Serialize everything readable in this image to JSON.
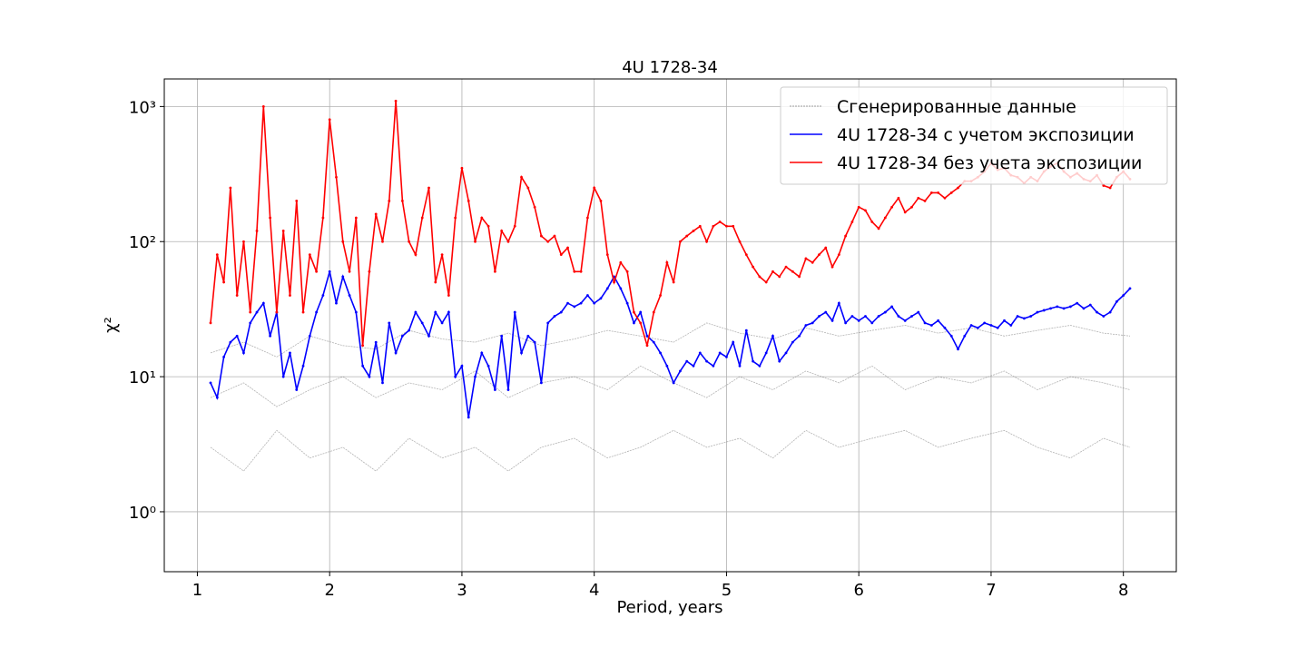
{
  "chart_data": {
    "type": "line",
    "title": "4U 1728-34",
    "xlabel": "Period, years",
    "ylabel": "χ²",
    "log_y": true,
    "grid": true,
    "legend": "upper right",
    "xlim": [
      0.75,
      8.4
    ],
    "xticks": [
      1,
      2,
      3,
      4,
      5,
      6,
      7,
      8
    ],
    "ylim": [
      0.36,
      1600
    ],
    "yticks": [
      {
        "value": 1,
        "label": "10⁰"
      },
      {
        "value": 10,
        "label": "10¹"
      },
      {
        "value": 100,
        "label": "10²"
      },
      {
        "value": 1000,
        "label": "10³"
      }
    ],
    "x": [
      1.1,
      1.15,
      1.2,
      1.25,
      1.3,
      1.35,
      1.4,
      1.45,
      1.5,
      1.55,
      1.6,
      1.65,
      1.7,
      1.75,
      1.8,
      1.85,
      1.9,
      1.95,
      2,
      2.05,
      2.1,
      2.15,
      2.2,
      2.25,
      2.3,
      2.35,
      2.4,
      2.45,
      2.5,
      2.55,
      2.6,
      2.65,
      2.7,
      2.75,
      2.8,
      2.85,
      2.9,
      2.95,
      3,
      3.05,
      3.1,
      3.15,
      3.2,
      3.25,
      3.3,
      3.35,
      3.4,
      3.45,
      3.5,
      3.55,
      3.6,
      3.65,
      3.7,
      3.75,
      3.8,
      3.85,
      3.9,
      3.95,
      4,
      4.05,
      4.1,
      4.15,
      4.2,
      4.25,
      4.3,
      4.35,
      4.4,
      4.45,
      4.5,
      4.55,
      4.6,
      4.65,
      4.7,
      4.75,
      4.8,
      4.85,
      4.9,
      4.95,
      5,
      5.05,
      5.1,
      5.15,
      5.2,
      5.25,
      5.3,
      5.35,
      5.4,
      5.45,
      5.5,
      5.55,
      5.6,
      5.65,
      5.7,
      5.75,
      5.8,
      5.85,
      5.9,
      5.95,
      6,
      6.05,
      6.1,
      6.15,
      6.2,
      6.25,
      6.3,
      6.35,
      6.4,
      6.45,
      6.5,
      6.55,
      6.6,
      6.65,
      6.7,
      6.75,
      6.8,
      6.85,
      6.9,
      6.95,
      7,
      7.05,
      7.1,
      7.15,
      7.2,
      7.25,
      7.3,
      7.35,
      7.4,
      7.45,
      7.5,
      7.55,
      7.6,
      7.65,
      7.7,
      7.75,
      7.8,
      7.85,
      7.9,
      7.95,
      8,
      8.05
    ],
    "series": [
      {
        "name": "Сгенерированные данные",
        "color": "#808080",
        "style": "generated",
        "x": [
          1.1,
          1.35,
          1.6,
          1.85,
          2.1,
          2.35,
          2.6,
          2.85,
          3.1,
          3.35,
          3.6,
          3.85,
          4.1,
          4.35,
          4.6,
          4.85,
          5.1,
          5.35,
          5.6,
          5.85,
          6.1,
          6.35,
          6.6,
          6.85,
          7.1,
          7.35,
          7.6,
          7.85,
          8.05
        ],
        "values": [
          7,
          9,
          6,
          8,
          10,
          7,
          9,
          8,
          11,
          7,
          9,
          10,
          8,
          12,
          9,
          7,
          10,
          8,
          11,
          9,
          12,
          8,
          10,
          9,
          11,
          8,
          10,
          9,
          8
        ]
      },
      {
        "color": "#808080",
        "style": "generated",
        "x": [
          1.1,
          1.35,
          1.6,
          1.85,
          2.1,
          2.35,
          2.6,
          2.85,
          3.1,
          3.35,
          3.6,
          3.85,
          4.1,
          4.35,
          4.6,
          4.85,
          5.1,
          5.35,
          5.6,
          5.85,
          6.1,
          6.35,
          6.6,
          6.85,
          7.1,
          7.35,
          7.6,
          7.85,
          8.05
        ],
        "values": [
          3,
          2,
          4,
          2.5,
          3,
          2,
          3.5,
          2.5,
          3,
          2,
          3,
          3.5,
          2.5,
          3,
          4,
          3,
          3.5,
          2.5,
          4,
          3,
          3.5,
          4,
          3,
          3.5,
          4,
          3,
          2.5,
          3.5,
          3
        ]
      },
      {
        "color": "#808080",
        "style": "generated",
        "x": [
          1.1,
          1.35,
          1.6,
          1.85,
          2.1,
          2.35,
          2.6,
          2.85,
          3.1,
          3.35,
          3.6,
          3.85,
          4.1,
          4.35,
          4.6,
          4.85,
          5.1,
          5.35,
          5.6,
          5.85,
          6.1,
          6.35,
          6.6,
          6.85,
          7.1,
          7.35,
          7.6,
          7.85,
          8.05
        ],
        "values": [
          15,
          18,
          14,
          20,
          17,
          16,
          22,
          19,
          18,
          21,
          17,
          19,
          22,
          20,
          18,
          25,
          21,
          19,
          23,
          20,
          22,
          24,
          21,
          23,
          20,
          22,
          24,
          21,
          20
        ]
      },
      {
        "name": "4U 1728-34 с учетом экспозиции",
        "color": "#0000ff",
        "values": [
          9,
          7,
          14,
          18,
          20,
          15,
          25,
          30,
          35,
          20,
          30,
          10,
          15,
          8,
          12,
          20,
          30,
          40,
          60,
          35,
          55,
          40,
          30,
          12,
          10,
          18,
          9,
          25,
          15,
          20,
          22,
          30,
          25,
          20,
          30,
          25,
          30,
          10,
          12,
          5,
          10,
          15,
          12,
          8,
          20,
          8,
          30,
          15,
          20,
          18,
          9,
          25,
          28,
          30,
          35,
          33,
          35,
          40,
          35,
          38,
          45,
          55,
          45,
          35,
          25,
          30,
          20,
          18,
          15,
          12,
          9,
          11,
          13,
          12,
          15,
          13,
          12,
          15,
          14,
          18,
          12,
          22,
          13,
          12,
          15,
          20,
          13,
          15,
          18,
          20,
          24,
          25,
          28,
          30,
          26,
          35,
          25,
          28,
          26,
          28,
          25,
          28,
          30,
          33,
          28,
          26,
          28,
          30,
          25,
          24,
          26,
          23,
          20,
          16,
          20,
          24,
          23,
          25,
          24,
          23,
          26,
          24,
          28,
          27,
          28,
          30,
          31,
          32,
          33,
          32,
          33,
          35,
          32,
          34,
          30,
          28,
          30,
          36,
          40,
          45
        ]
      },
      {
        "name": "4U 1728-34 без учета экспозиции",
        "color": "#ff0000",
        "values": [
          25,
          80,
          50,
          250,
          40,
          100,
          30,
          120,
          1000,
          150,
          30,
          120,
          40,
          200,
          30,
          80,
          60,
          150,
          800,
          300,
          100,
          60,
          150,
          17,
          60,
          160,
          100,
          200,
          1100,
          200,
          100,
          80,
          150,
          250,
          50,
          80,
          40,
          150,
          350,
          200,
          100,
          150,
          130,
          60,
          120,
          100,
          130,
          300,
          250,
          180,
          110,
          100,
          110,
          80,
          90,
          60,
          60,
          150,
          250,
          200,
          80,
          50,
          70,
          60,
          30,
          25,
          17,
          30,
          40,
          70,
          50,
          100,
          110,
          120,
          130,
          100,
          130,
          140,
          130,
          130,
          100,
          80,
          65,
          55,
          50,
          60,
          55,
          65,
          60,
          55,
          75,
          70,
          80,
          90,
          65,
          80,
          110,
          140,
          180,
          170,
          140,
          125,
          150,
          180,
          210,
          165,
          180,
          210,
          200,
          230,
          230,
          210,
          230,
          250,
          280,
          280,
          300,
          330,
          380,
          340,
          350,
          310,
          300,
          270,
          300,
          280,
          330,
          360,
          380,
          330,
          300,
          320,
          290,
          280,
          310,
          260,
          250,
          300,
          330,
          290
        ]
      }
    ]
  }
}
